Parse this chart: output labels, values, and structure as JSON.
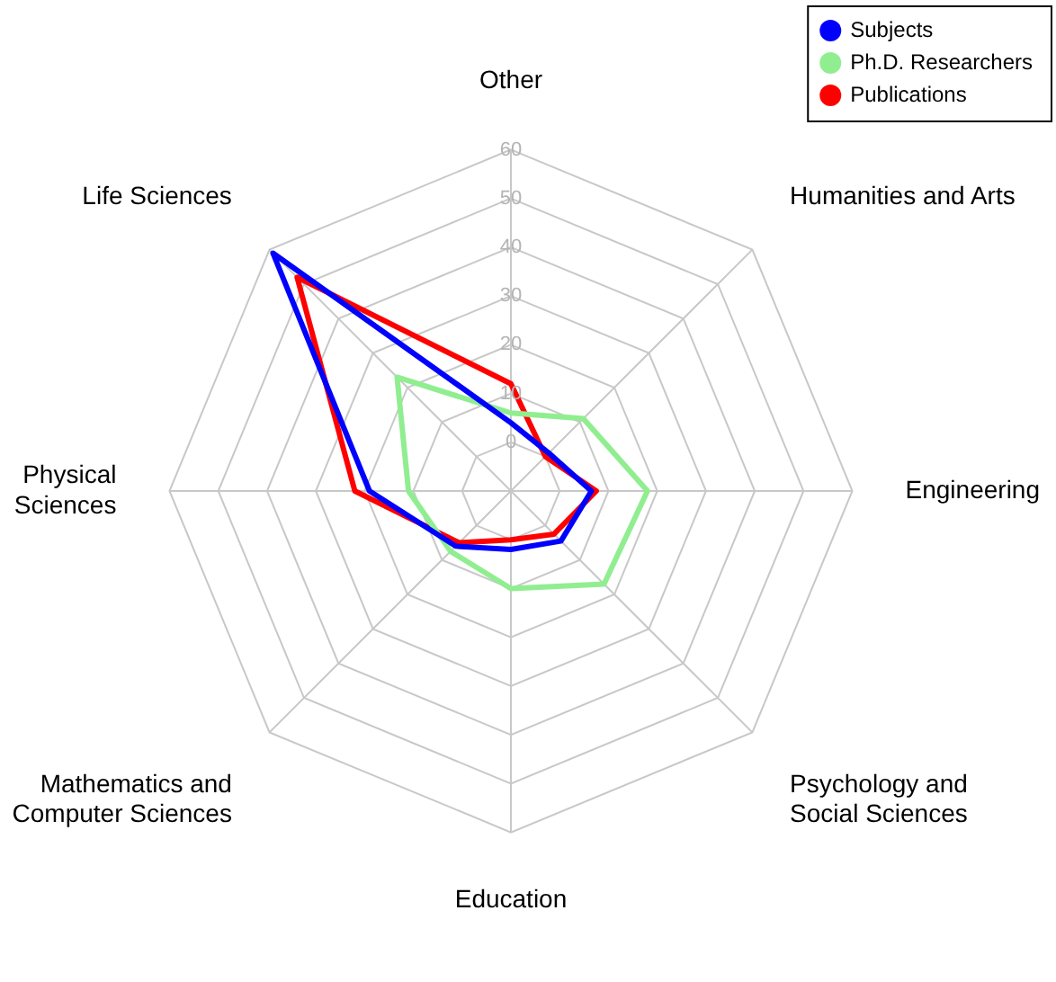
{
  "chart_data": {
    "type": "radar",
    "categories": [
      "Other",
      "Humanities and Arts",
      "Engineering",
      "Psychology and Social Sciences",
      "Education",
      "Mathematics and Computer Sciences",
      "Physical Sciences",
      "Life Sciences"
    ],
    "series": [
      {
        "name": "Subjects",
        "color": "#0000ff",
        "values": [
          4,
          1,
          6.5,
          4.5,
          2,
          6,
          19,
          59
        ]
      },
      {
        "name": "Ph.D. Researchers",
        "color": "#90ee90",
        "values": [
          6,
          11,
          18,
          17,
          10,
          7.5,
          11,
          23
        ]
      },
      {
        "name": "Publications",
        "color": "#ff0000",
        "values": [
          12,
          0,
          7.5,
          2.5,
          0,
          5,
          22,
          52
        ]
      }
    ],
    "ylim": [
      -10,
      60
    ],
    "yticks": [
      0,
      10,
      20,
      30,
      40,
      50,
      60
    ],
    "grid": true,
    "legend": "top right",
    "marker": "none",
    "line_style": "solid"
  }
}
